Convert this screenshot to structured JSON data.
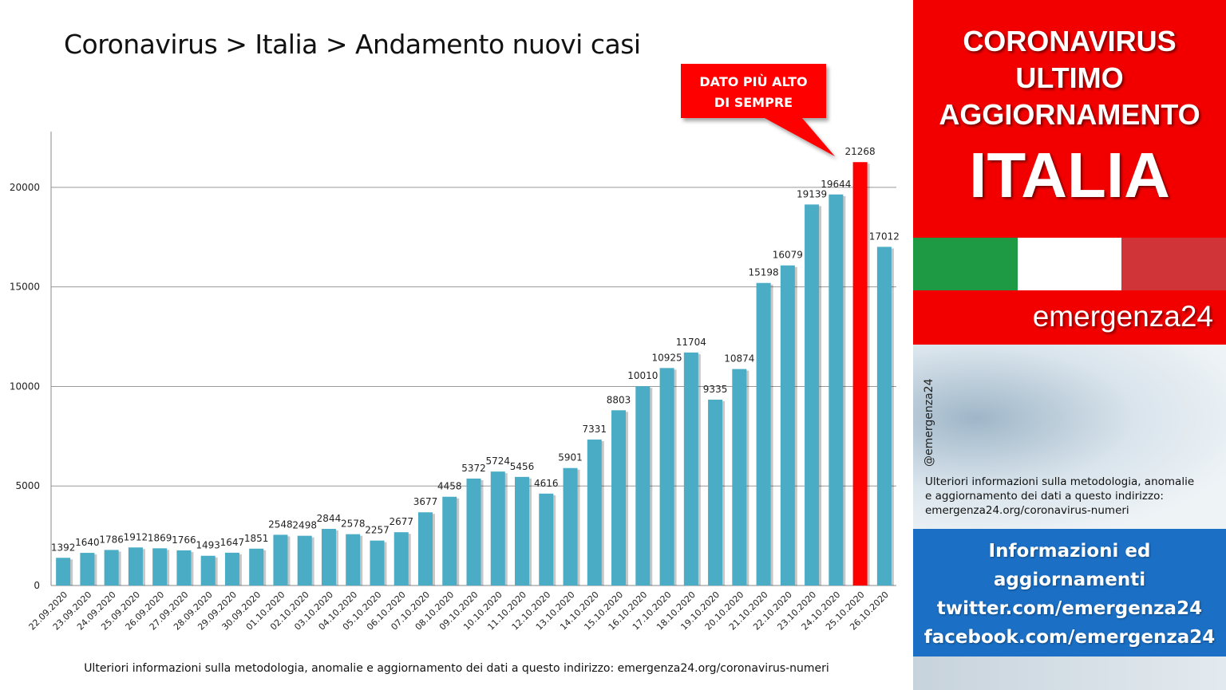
{
  "title": "Coronavirus > Italia > Andamento nuovi casi",
  "callout": {
    "line1": "DATO PIÙ ALTO",
    "line2": "DI SEMPRE"
  },
  "footer_note": "Ulteriori informazioni sulla metodologia, anomalie e aggiornamento dei dati a questo indirizzo: emergenza24.org/coronavirus-numeri",
  "sidebar": {
    "banner": {
      "line1": "CORONAVIRUS",
      "line2": "ULTIMO",
      "line3": "AGGIORNAMENTO",
      "line4": "ITALIA"
    },
    "brand": "emergenza24",
    "handle": "@emergenza24",
    "info_lines": [
      "Ulteriori informazioni sulla metodologia, anomalie",
      "e aggiornamento dei dati a questo indirizzo:",
      "emergenza24.org/coronavirus-numeri"
    ],
    "social_lines": [
      "Informazioni ed",
      "aggiornamenti",
      "twitter.com/emergenza24",
      "facebook.com/emergenza24"
    ]
  },
  "colors": {
    "bar": "#4bacc6",
    "highlight_bar": "#ff0000",
    "banner_red": "#f20000",
    "flag_green": "#1e9a44",
    "flag_white": "#ffffff",
    "flag_red": "#d13438",
    "social_blue": "#1b6fc4"
  },
  "chart_data": {
    "type": "bar",
    "categories": [
      "22.09.2020",
      "23.09.2020",
      "24.09.2020",
      "25.09.2020",
      "26.09.2020",
      "27.09.2020",
      "28.09.2020",
      "29.09.2020",
      "30.09.2020",
      "01.10.2020",
      "02.10.2020",
      "03.10.2020",
      "04.10.2020",
      "05.10.2020",
      "06.10.2020",
      "07.10.2020",
      "08.10.2020",
      "09.10.2020",
      "10.10.2020",
      "11.10.2020",
      "12.10.2020",
      "13.10.2020",
      "14.10.2020",
      "15.10.2020",
      "16.10.2020",
      "17.10.2020",
      "18.10.2020",
      "19.10.2020",
      "20.10.2020",
      "21.10.2020",
      "22.10.2020",
      "23.10.2020",
      "24.10.2020",
      "25.10.2020",
      "26.10.2020"
    ],
    "values": [
      1392,
      1640,
      1786,
      1912,
      1869,
      1766,
      1493,
      1647,
      1851,
      2548,
      2498,
      2844,
      2578,
      2257,
      2677,
      3677,
      4458,
      5372,
      5724,
      5456,
      4616,
      5901,
      7331,
      8803,
      10010,
      10925,
      11704,
      9335,
      10874,
      15198,
      16079,
      19139,
      19644,
      21268,
      17012
    ],
    "highlight_index": 33,
    "yticks": [
      0,
      5000,
      10000,
      15000,
      20000
    ],
    "ylim": [
      0,
      22800
    ],
    "grid": true,
    "legend": "none"
  }
}
